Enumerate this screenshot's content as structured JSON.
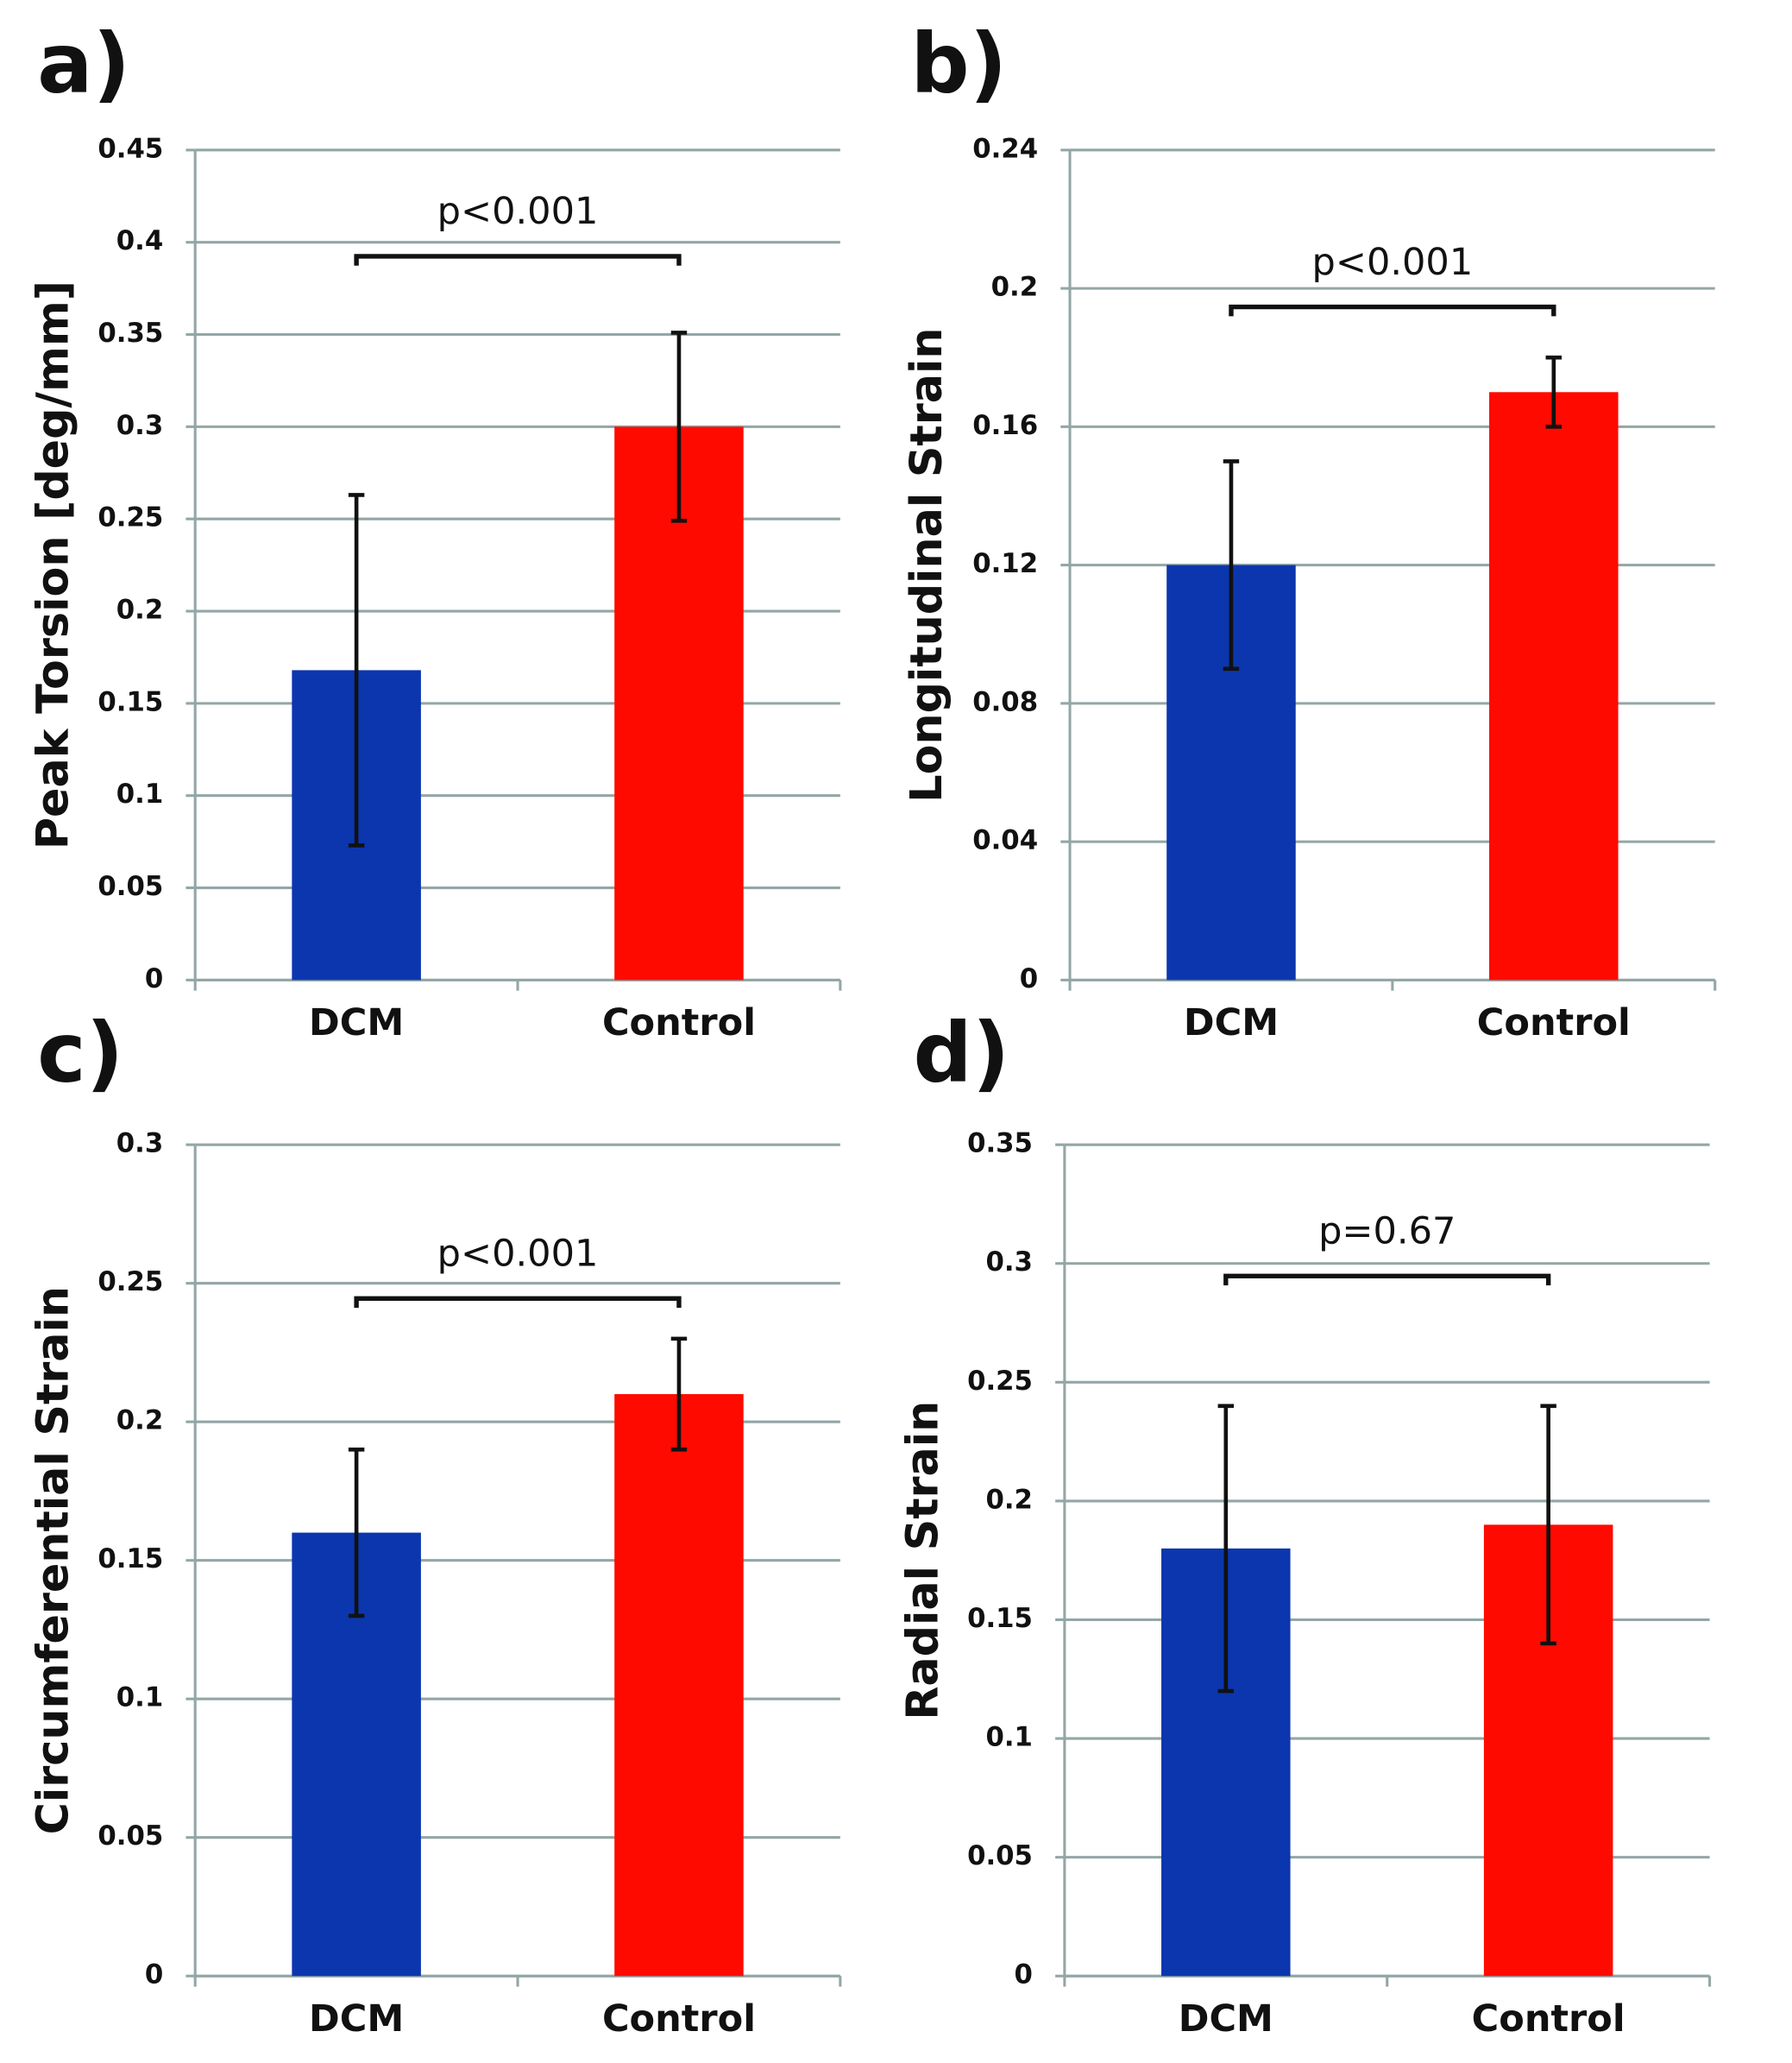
{
  "chart_data": [
    {
      "type": "bar",
      "panel": "a)",
      "ylabel": "Peak Torsion [deg/mm]",
      "annotation": "p<0.001",
      "categories": [
        "DCM",
        "Control"
      ],
      "values": [
        0.168,
        0.3
      ],
      "errors": [
        0.095,
        0.051
      ],
      "colors": [
        "#0b36ae",
        "#ff0a00"
      ],
      "ylim": [
        0,
        0.45
      ],
      "yticks": [
        0,
        0.05,
        0.1,
        0.15,
        0.2,
        0.25,
        0.3,
        0.35,
        0.4,
        0.45
      ],
      "grid": true
    },
    {
      "type": "bar",
      "panel": "b)",
      "ylabel": "Longitudinal Strain",
      "annotation": "p<0.001",
      "categories": [
        "DCM",
        "Control"
      ],
      "values": [
        0.12,
        0.17
      ],
      "errors": [
        0.03,
        0.01
      ],
      "colors": [
        "#0b36ae",
        "#ff0a00"
      ],
      "ylim": [
        0,
        0.24
      ],
      "yticks": [
        0,
        0.04,
        0.08,
        0.12,
        0.16,
        0.2,
        0.24
      ],
      "grid": true
    },
    {
      "type": "bar",
      "panel": "c)",
      "ylabel": "Circumferential Strain",
      "annotation": "p<0.001",
      "categories": [
        "DCM",
        "Control"
      ],
      "values": [
        0.16,
        0.21
      ],
      "errors": [
        0.03,
        0.02
      ],
      "colors": [
        "#0b36ae",
        "#ff0a00"
      ],
      "ylim": [
        0,
        0.3
      ],
      "yticks": [
        0,
        0.05,
        0.1,
        0.15,
        0.2,
        0.25,
        0.3
      ],
      "grid": true
    },
    {
      "type": "bar",
      "panel": "d)",
      "ylabel": "Radial Strain",
      "annotation": "p=0.67",
      "categories": [
        "DCM",
        "Control"
      ],
      "values": [
        0.18,
        0.19
      ],
      "errors": [
        0.06,
        0.05
      ],
      "colors": [
        "#0b36ae",
        "#ff0a00"
      ],
      "ylim": [
        0,
        0.35
      ],
      "yticks": [
        0,
        0.05,
        0.1,
        0.15,
        0.2,
        0.25,
        0.3,
        0.35
      ],
      "grid": true
    }
  ]
}
